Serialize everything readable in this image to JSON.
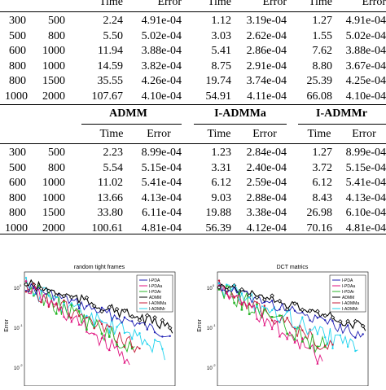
{
  "table1": {
    "columns": {
      "time": "Time",
      "error": "Error"
    },
    "rows": [
      [
        "300",
        "500",
        "2.24",
        "4.91e-04",
        "1.12",
        "3.19e-04",
        "1.27",
        "4.91e-04"
      ],
      [
        "500",
        "800",
        "5.50",
        "5.02e-04",
        "3.03",
        "2.62e-04",
        "1.55",
        "5.02e-04"
      ],
      [
        "600",
        "1000",
        "11.94",
        "3.88e-04",
        "5.41",
        "2.86e-04",
        "7.62",
        "3.88e-04"
      ],
      [
        "800",
        "1000",
        "14.59",
        "3.82e-04",
        "8.75",
        "2.91e-04",
        "8.80",
        "3.67e-04"
      ],
      [
        "800",
        "1500",
        "35.55",
        "4.26e-04",
        "19.74",
        "3.74e-04",
        "25.39",
        "4.25e-04"
      ],
      [
        "1000",
        "2000",
        "107.67",
        "4.10e-04",
        "54.91",
        "4.11e-04",
        "66.08",
        "4.10e-04"
      ]
    ]
  },
  "table2": {
    "groups": [
      "ADMM",
      "I-ADMMa",
      "I-ADMMr"
    ],
    "columns": {
      "time": "Time",
      "error": "Error"
    },
    "rows": [
      [
        "300",
        "500",
        "2.23",
        "8.99e-04",
        "1.23",
        "2.84e-04",
        "1.27",
        "8.99e-04"
      ],
      [
        "500",
        "800",
        "5.54",
        "5.15e-04",
        "3.31",
        "2.40e-04",
        "3.72",
        "5.15e-04"
      ],
      [
        "600",
        "1000",
        "11.02",
        "5.41e-04",
        "6.12",
        "2.59e-04",
        "6.12",
        "5.41e-04"
      ],
      [
        "800",
        "1000",
        "13.66",
        "4.13e-04",
        "9.03",
        "2.88e-04",
        "8.43",
        "4.13e-04"
      ],
      [
        "800",
        "1500",
        "33.80",
        "6.11e-04",
        "19.88",
        "3.38e-04",
        "26.98",
        "6.10e-04"
      ],
      [
        "1000",
        "2000",
        "100.61",
        "4.81e-04",
        "56.39",
        "4.12e-04",
        "70.16",
        "4.81e-04"
      ]
    ]
  },
  "plots": [
    {
      "title": "random tight frames",
      "ylabel": "Error"
    },
    {
      "title": "DCT matrics",
      "ylabel": "Error"
    }
  ],
  "legend": [
    "I-PDA",
    "I-PDAa",
    "I-PDAr",
    "ADMM",
    "I-ADMMa",
    "I-ADMMr"
  ],
  "ticks": [
    "10",
    "10",
    "10"
  ],
  "tick_exps": [
    "0",
    "-1",
    "-2"
  ],
  "colors": {
    "I-PDA": "#1f1fb4",
    "I-PDAa": "#e0117f",
    "I-PDAr": "#2ab52a",
    "ADMM": "#000000",
    "I-ADMMa": "#c41e3a",
    "I-ADMMr": "#22d3ee"
  }
}
